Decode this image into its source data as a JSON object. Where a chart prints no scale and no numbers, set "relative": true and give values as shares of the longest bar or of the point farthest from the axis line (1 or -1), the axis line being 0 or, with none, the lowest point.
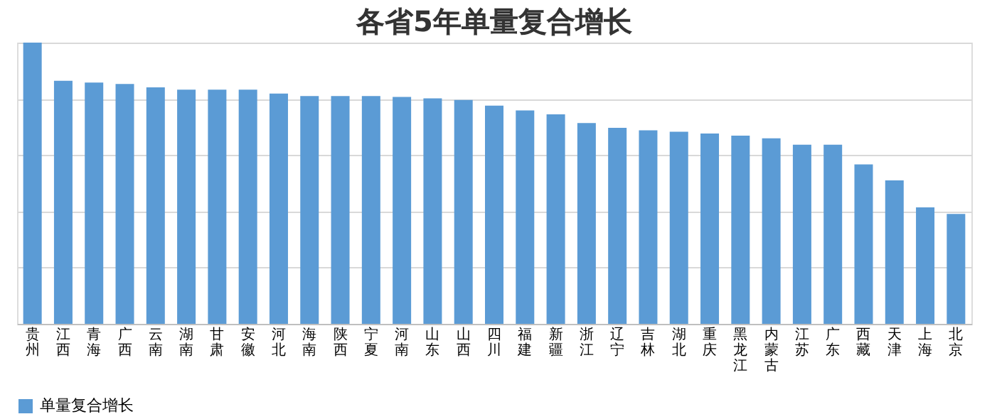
{
  "chart_data": {
    "type": "bar",
    "title": "各省5年单量复合增长",
    "relative": true,
    "categories": [
      "贵州",
      "江西",
      "青海",
      "广西",
      "云南",
      "湖南",
      "甘肃",
      "安徽",
      "河北",
      "海南",
      "陕西",
      "宁夏",
      "河南",
      "山东",
      "山西",
      "四川",
      "福建",
      "新疆",
      "浙江",
      "辽宁",
      "吉林",
      "湖北",
      "重庆",
      "黑龙江",
      "内蒙古",
      "江苏",
      "广东",
      "西藏",
      "天津",
      "上海",
      "北京"
    ],
    "series": [
      {
        "name": "单量复合增长",
        "color": "#5b9bd5",
        "values": [
          1,
          0.864,
          0.858,
          0.853,
          0.841,
          0.833,
          0.833,
          0.833,
          0.819,
          0.81,
          0.81,
          0.81,
          0.807,
          0.802,
          0.796,
          0.776,
          0.759,
          0.745,
          0.714,
          0.697,
          0.688,
          0.683,
          0.677,
          0.669,
          0.66,
          0.637,
          0.637,
          0.567,
          0.51,
          0.414,
          0.391
        ]
      }
    ],
    "grid": "y",
    "legend": "bottom"
  }
}
